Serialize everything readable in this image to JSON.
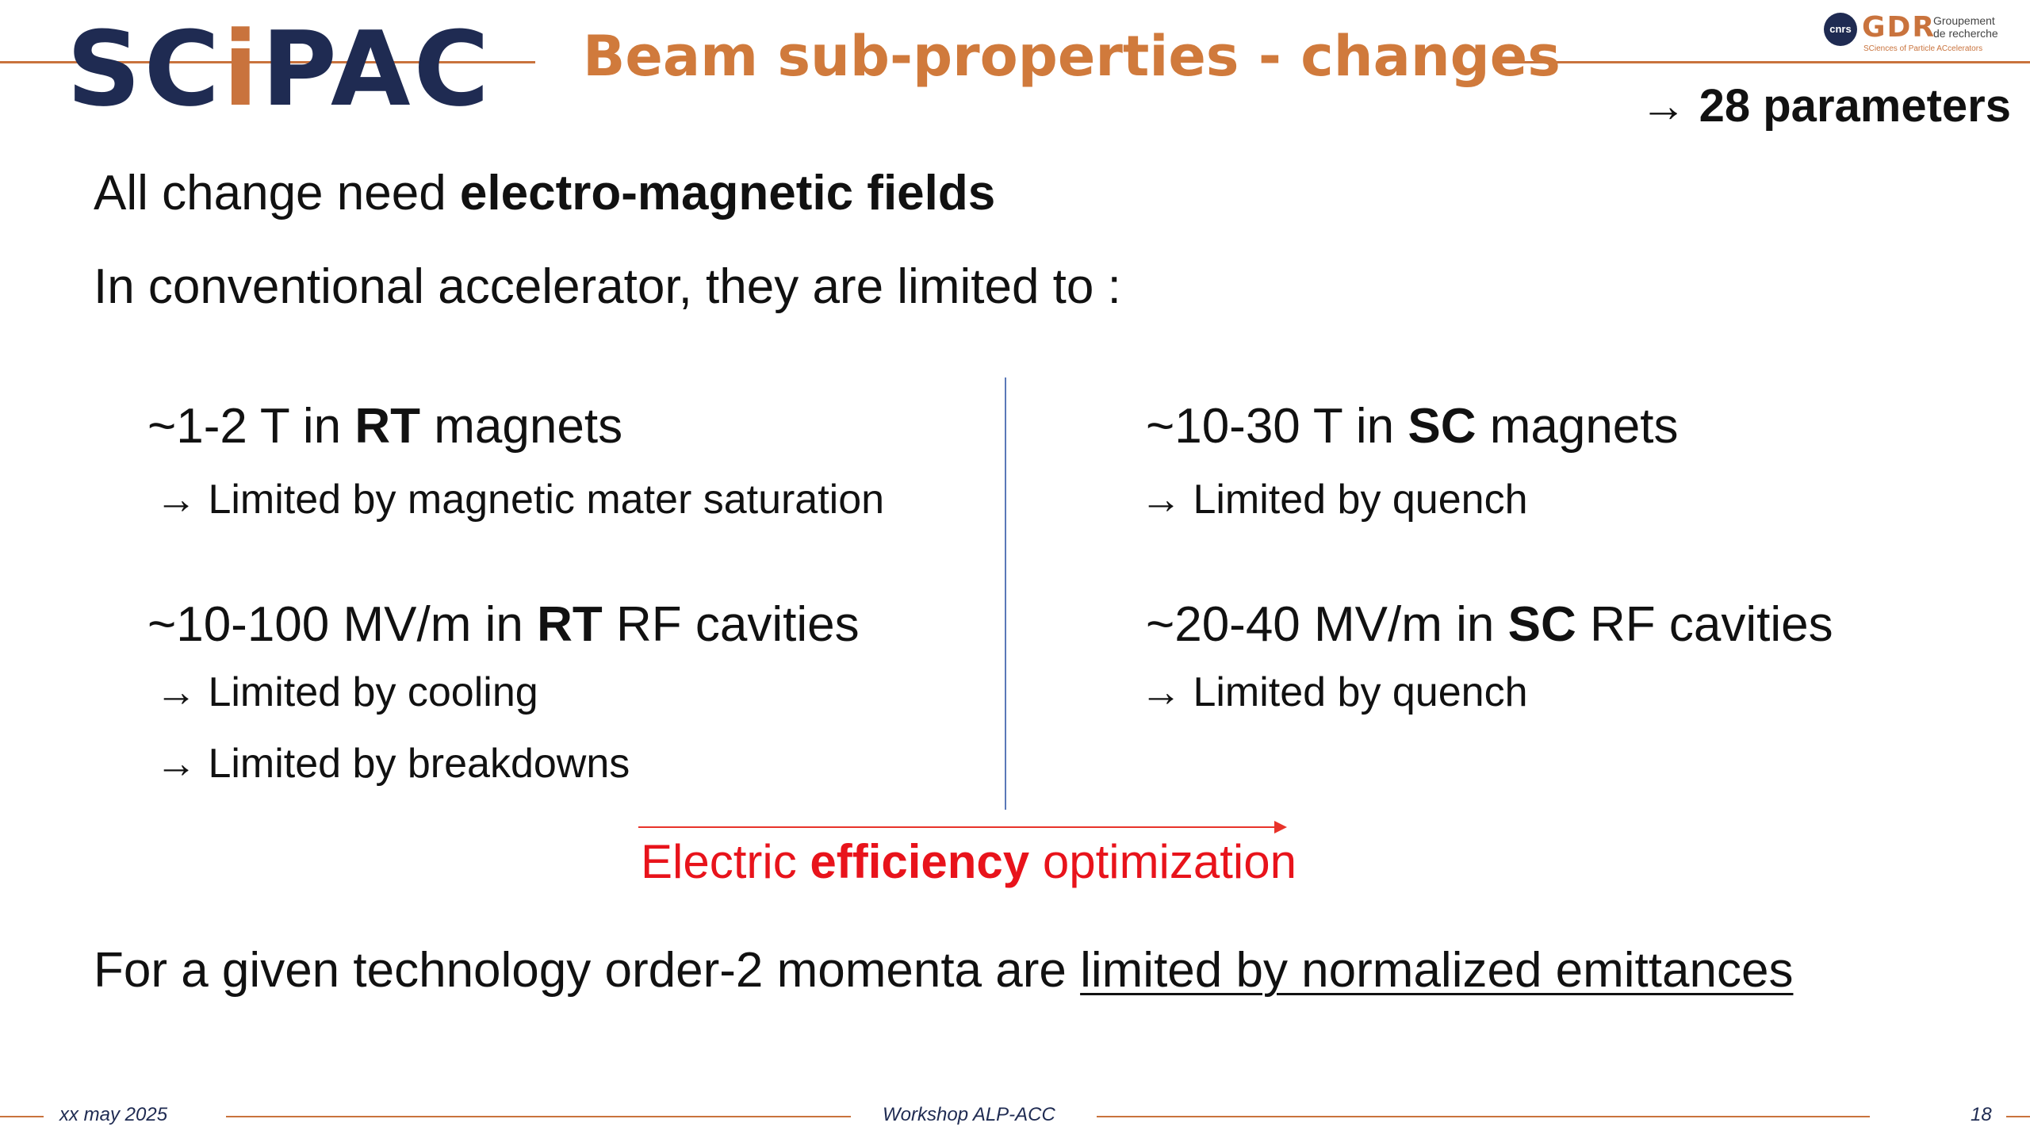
{
  "logo": {
    "part1": "SC",
    "dot": "i",
    "part2": "PAC"
  },
  "title": "Beam sub-properties - changes",
  "gdr": {
    "cnrs": "cnrs",
    "word": "GDR",
    "sub1": "Groupement",
    "sub2": "de recherche",
    "tag": "SCiences of Particle ACcelerators"
  },
  "params": "→ 28 parameters",
  "line1": {
    "plain": "All change need ",
    "bold": "electro-magnetic fields"
  },
  "line2": "In conventional accelerator, they are limited to :",
  "left": {
    "magnets": {
      "pre": "~1-2 T in ",
      "bold": "RT",
      "post": " magnets"
    },
    "magnets_limit": "→ Limited by magnetic mater saturation",
    "rf": {
      "pre": "~10-100 MV/m in ",
      "bold": "RT",
      "post": " RF cavities"
    },
    "rf_limit1": "→ Limited by cooling",
    "rf_limit2": "→ Limited by breakdowns"
  },
  "right": {
    "magnets": {
      "pre": "~10-30 T in ",
      "bold": "SC",
      "post": " magnets"
    },
    "magnets_limit": "→ Limited by quench",
    "rf": {
      "pre": "~20-40 MV/m in ",
      "bold": "SC",
      "post": " RF cavities"
    },
    "rf_limit": "→ Limited by quench"
  },
  "efficiency": {
    "pre": "Electric ",
    "bold": "efficiency",
    "post": " optimization"
  },
  "bottom": {
    "plain": "For a given technology order-2 momenta are ",
    "underline": "limited by normalized emittances"
  },
  "footer": {
    "date": "xx may 2025",
    "workshop": "Workshop ALP-ACC",
    "page": "18"
  },
  "colors": {
    "accent": "#c9733d",
    "navy": "#1f2b52",
    "red": "#e8131b",
    "divider": "#5a78b8"
  }
}
